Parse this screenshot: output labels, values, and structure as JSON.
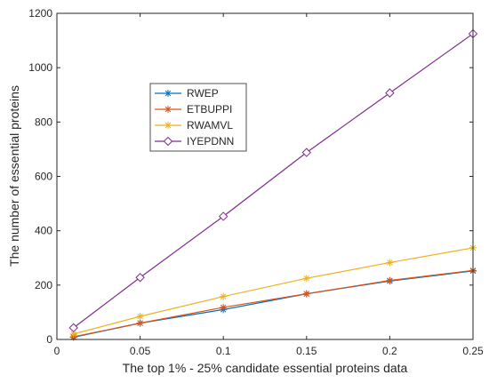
{
  "chart_data": {
    "type": "line",
    "title": "",
    "xlabel": "The top 1% - 25% candidate essential proteins data",
    "ylabel": "The number of essential proteins",
    "xlim": [
      0,
      0.25
    ],
    "ylim": [
      0,
      1200
    ],
    "xticks": [
      "0",
      "0.05",
      "0.1",
      "0.15",
      "0.2",
      "0.25"
    ],
    "yticks": [
      "0",
      "200",
      "400",
      "600",
      "800",
      "1000",
      "1200"
    ],
    "x": [
      0.01,
      0.05,
      0.1,
      0.15,
      0.2,
      0.25
    ],
    "grid": false,
    "legend_position": "upper-left-inside",
    "series": [
      {
        "name": "RWEP",
        "values": [
          8,
          60,
          110,
          168,
          215,
          252
        ],
        "color": "#0072BD",
        "marker": "asterisk"
      },
      {
        "name": "ETBUPPI",
        "values": [
          10,
          60,
          118,
          168,
          217,
          254
        ],
        "color": "#D95319",
        "marker": "asterisk"
      },
      {
        "name": "RWAMVL",
        "values": [
          20,
          85,
          158,
          225,
          283,
          337
        ],
        "color": "#EDB120",
        "marker": "asterisk"
      },
      {
        "name": "IYEPDNN",
        "values": [
          43,
          228,
          453,
          688,
          907,
          1125
        ],
        "color": "#7E2F8E",
        "marker": "diamond"
      }
    ]
  }
}
